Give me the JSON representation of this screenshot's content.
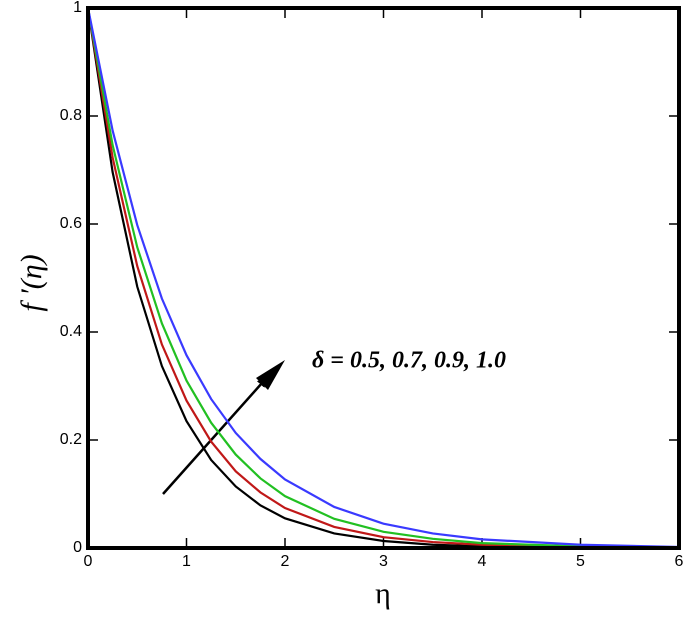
{
  "chart_data": {
    "type": "line",
    "x_label": "η",
    "y_label": "f ′(η)",
    "annotation": "δ = 0.5, 0.7, 0.9, 1.0",
    "x": [
      0,
      0.25,
      0.5,
      0.75,
      1,
      1.25,
      1.5,
      1.75,
      2,
      2.5,
      3,
      3.5,
      4,
      5,
      6
    ],
    "series": [
      {
        "color": "#000000",
        "values": [
          1,
          0.696,
          0.484,
          0.337,
          0.235,
          0.163,
          0.114,
          0.079,
          0.055,
          0.027,
          0.013,
          0.006,
          0.003,
          0.001,
          0
        ]
      },
      {
        "color": "#c01818",
        "values": [
          1,
          0.723,
          0.522,
          0.377,
          0.273,
          0.197,
          0.142,
          0.103,
          0.074,
          0.039,
          0.02,
          0.011,
          0.006,
          0.002,
          0
        ]
      },
      {
        "color": "#22c022",
        "values": [
          1,
          0.746,
          0.557,
          0.416,
          0.31,
          0.232,
          0.173,
          0.129,
          0.096,
          0.054,
          0.03,
          0.017,
          0.009,
          0.003,
          0.001
        ]
      },
      {
        "color": "#3a3aff",
        "values": [
          1,
          0.773,
          0.598,
          0.462,
          0.357,
          0.276,
          0.213,
          0.165,
          0.127,
          0.076,
          0.045,
          0.027,
          0.016,
          0.006,
          0.002
        ]
      }
    ],
    "xlim": [
      0,
      6
    ],
    "xticks": [
      0,
      1,
      2,
      3,
      4,
      5,
      6
    ],
    "ylim": [
      0,
      1
    ],
    "yticks": [
      0,
      0.2,
      0.4,
      0.6,
      0.8,
      1
    ]
  }
}
